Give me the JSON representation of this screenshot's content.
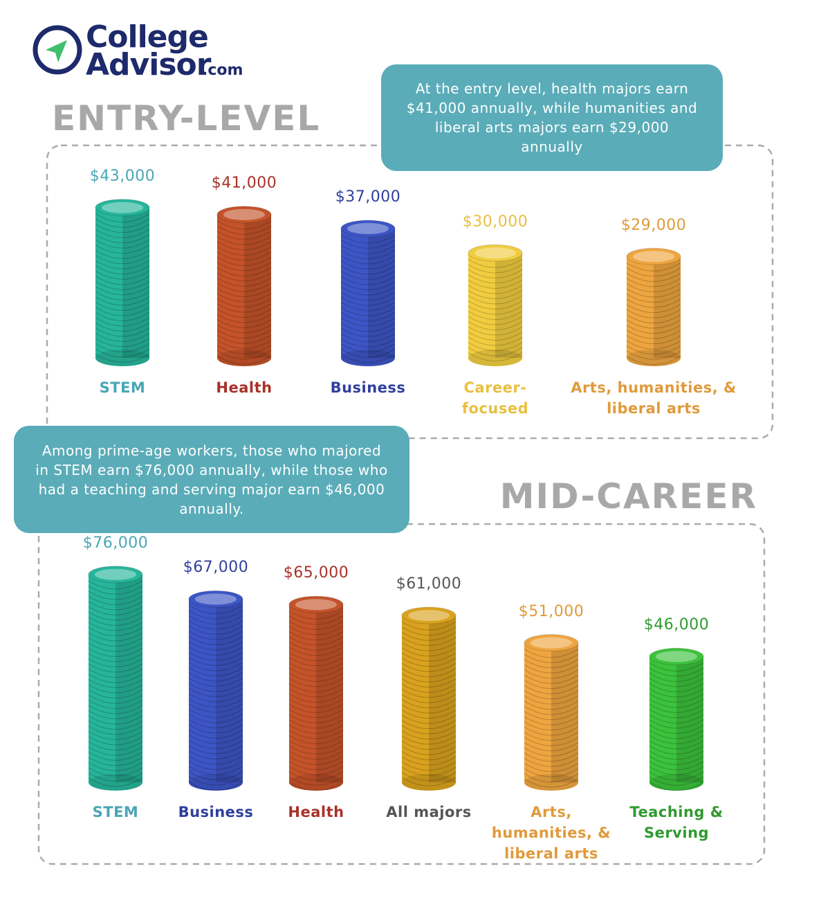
{
  "logo": {
    "line1": "College",
    "line2": "Advisor",
    "suffix": ".com"
  },
  "chart_data": [
    {
      "type": "coin-stack",
      "title": "ENTRY-LEVEL",
      "annotation": "At the entry level, health majors earn $41,000 annually, while humanities and liberal arts majors earn $29,000 annually",
      "categories": [
        "STEM",
        "Health",
        "Business",
        "Career-focused",
        "Arts, humanities, & liberal arts"
      ],
      "values": [
        43000,
        41000,
        37000,
        30000,
        29000
      ],
      "value_labels": [
        "$43,000",
        "$41,000",
        "$37,000",
        "$30,000",
        "$29,000"
      ],
      "colors": [
        "#27b59a",
        "#c4532a",
        "#3d55c4",
        "#f0cc40",
        "#eea540"
      ],
      "label_colors": [
        "#4aa6b6",
        "#a8322a",
        "#2f3f9e",
        "#e8c040",
        "#e09a3a"
      ]
    },
    {
      "type": "coin-stack",
      "title": "MID-CAREER",
      "annotation": "Among prime-age workers, those who majored in STEM earn $76,000 annually, while those who had a teaching and serving major earn $46,000 annually.",
      "categories": [
        "STEM",
        "Business",
        "Health",
        "All majors",
        "Arts, humanities, & liberal arts",
        "Teaching & Serving"
      ],
      "values": [
        76000,
        67000,
        65000,
        61000,
        51000,
        46000
      ],
      "value_labels": [
        "$76,000",
        "$67,000",
        "$65,000",
        "$61,000",
        "$51,000",
        "$46,000"
      ],
      "colors": [
        "#27b59a",
        "#3d55c4",
        "#c4532a",
        "#d9a21e",
        "#eea540",
        "#3cc23c"
      ],
      "label_colors": [
        "#4aa6b6",
        "#2f3f9e",
        "#a8322a",
        "#555555",
        "#e09a3a",
        "#2f9a2f"
      ]
    }
  ]
}
